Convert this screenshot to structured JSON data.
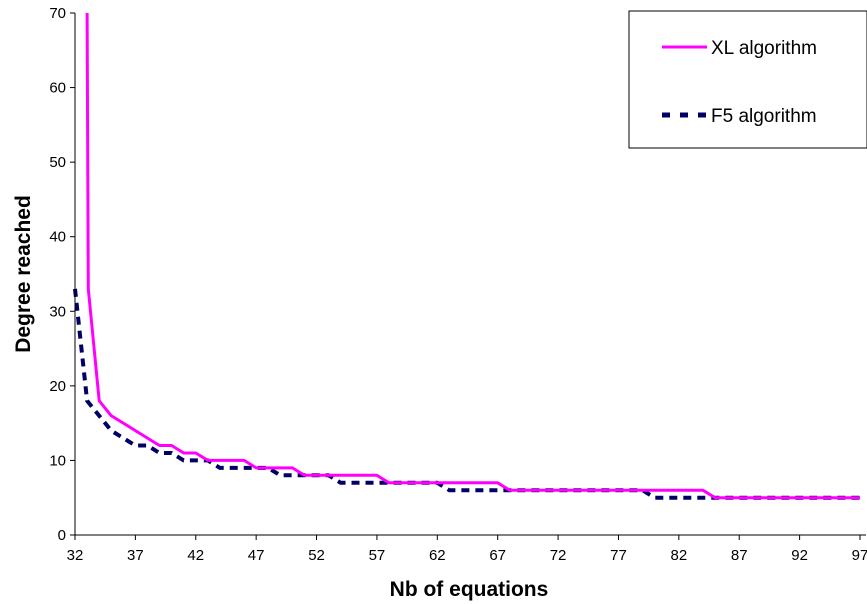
{
  "chart_data": {
    "type": "line",
    "title": "",
    "xlabel": "Nb of equations",
    "ylabel": "Degree reached",
    "xlim": [
      32,
      97
    ],
    "ylim": [
      0,
      70
    ],
    "x_ticks": [
      "32",
      "37",
      "42",
      "47",
      "52",
      "57",
      "62",
      "67",
      "72",
      "77",
      "82",
      "87",
      "92",
      "97"
    ],
    "y_ticks": [
      "0",
      "10",
      "20",
      "30",
      "40",
      "50",
      "60",
      "70"
    ],
    "grid": false,
    "legend_position": "top-right",
    "series": [
      {
        "name": "XL algorithm",
        "color": "#ff00ff",
        "style": "solid",
        "points": [
          [
            33,
            70
          ],
          [
            33.1,
            33
          ],
          [
            34,
            18
          ],
          [
            35,
            16
          ],
          [
            36,
            15
          ],
          [
            37,
            14
          ],
          [
            38,
            13
          ],
          [
            39,
            12
          ],
          [
            40,
            12
          ],
          [
            41,
            11
          ],
          [
            42,
            11
          ],
          [
            43,
            10
          ],
          [
            44,
            10
          ],
          [
            45,
            10
          ],
          [
            46,
            10
          ],
          [
            47,
            9
          ],
          [
            48,
            9
          ],
          [
            49,
            9
          ],
          [
            50,
            9
          ],
          [
            51,
            8
          ],
          [
            52,
            8
          ],
          [
            53,
            8
          ],
          [
            54,
            8
          ],
          [
            55,
            8
          ],
          [
            56,
            8
          ],
          [
            57,
            8
          ],
          [
            58,
            7
          ],
          [
            59,
            7
          ],
          [
            60,
            7
          ],
          [
            61,
            7
          ],
          [
            62,
            7
          ],
          [
            63,
            7
          ],
          [
            64,
            7
          ],
          [
            65,
            7
          ],
          [
            66,
            7
          ],
          [
            67,
            7
          ],
          [
            68,
            6
          ],
          [
            69,
            6
          ],
          [
            70,
            6
          ],
          [
            71,
            6
          ],
          [
            72,
            6
          ],
          [
            73,
            6
          ],
          [
            74,
            6
          ],
          [
            75,
            6
          ],
          [
            76,
            6
          ],
          [
            77,
            6
          ],
          [
            78,
            6
          ],
          [
            79,
            6
          ],
          [
            80,
            6
          ],
          [
            81,
            6
          ],
          [
            82,
            6
          ],
          [
            83,
            6
          ],
          [
            84,
            6
          ],
          [
            85,
            5
          ],
          [
            86,
            5
          ],
          [
            87,
            5
          ],
          [
            88,
            5
          ],
          [
            89,
            5
          ],
          [
            90,
            5
          ],
          [
            91,
            5
          ],
          [
            92,
            5
          ],
          [
            93,
            5
          ],
          [
            94,
            5
          ],
          [
            95,
            5
          ],
          [
            96,
            5
          ],
          [
            97,
            5
          ]
        ]
      },
      {
        "name": "F5 algorithm",
        "color": "#000066",
        "style": "dashed",
        "points": [
          [
            32,
            33
          ],
          [
            33,
            18
          ],
          [
            34,
            16
          ],
          [
            35,
            14
          ],
          [
            36,
            13
          ],
          [
            37,
            12
          ],
          [
            38,
            12
          ],
          [
            39,
            11
          ],
          [
            40,
            11
          ],
          [
            41,
            10
          ],
          [
            42,
            10
          ],
          [
            43,
            10
          ],
          [
            44,
            9
          ],
          [
            45,
            9
          ],
          [
            46,
            9
          ],
          [
            47,
            9
          ],
          [
            48,
            9
          ],
          [
            49,
            8
          ],
          [
            50,
            8
          ],
          [
            51,
            8
          ],
          [
            52,
            8
          ],
          [
            53,
            8
          ],
          [
            54,
            7
          ],
          [
            55,
            7
          ],
          [
            56,
            7
          ],
          [
            57,
            7
          ],
          [
            58,
            7
          ],
          [
            59,
            7
          ],
          [
            60,
            7
          ],
          [
            61,
            7
          ],
          [
            62,
            7
          ],
          [
            63,
            6
          ],
          [
            64,
            6
          ],
          [
            65,
            6
          ],
          [
            66,
            6
          ],
          [
            67,
            6
          ],
          [
            68,
            6
          ],
          [
            69,
            6
          ],
          [
            70,
            6
          ],
          [
            71,
            6
          ],
          [
            72,
            6
          ],
          [
            73,
            6
          ],
          [
            74,
            6
          ],
          [
            75,
            6
          ],
          [
            76,
            6
          ],
          [
            77,
            6
          ],
          [
            78,
            6
          ],
          [
            79,
            6
          ],
          [
            80,
            5
          ],
          [
            81,
            5
          ],
          [
            82,
            5
          ],
          [
            83,
            5
          ],
          [
            84,
            5
          ],
          [
            85,
            5
          ],
          [
            86,
            5
          ],
          [
            87,
            5
          ],
          [
            88,
            5
          ],
          [
            89,
            5
          ],
          [
            90,
            5
          ],
          [
            91,
            5
          ],
          [
            92,
            5
          ],
          [
            93,
            5
          ],
          [
            94,
            5
          ],
          [
            95,
            5
          ],
          [
            96,
            5
          ],
          [
            97,
            5
          ]
        ]
      }
    ]
  }
}
